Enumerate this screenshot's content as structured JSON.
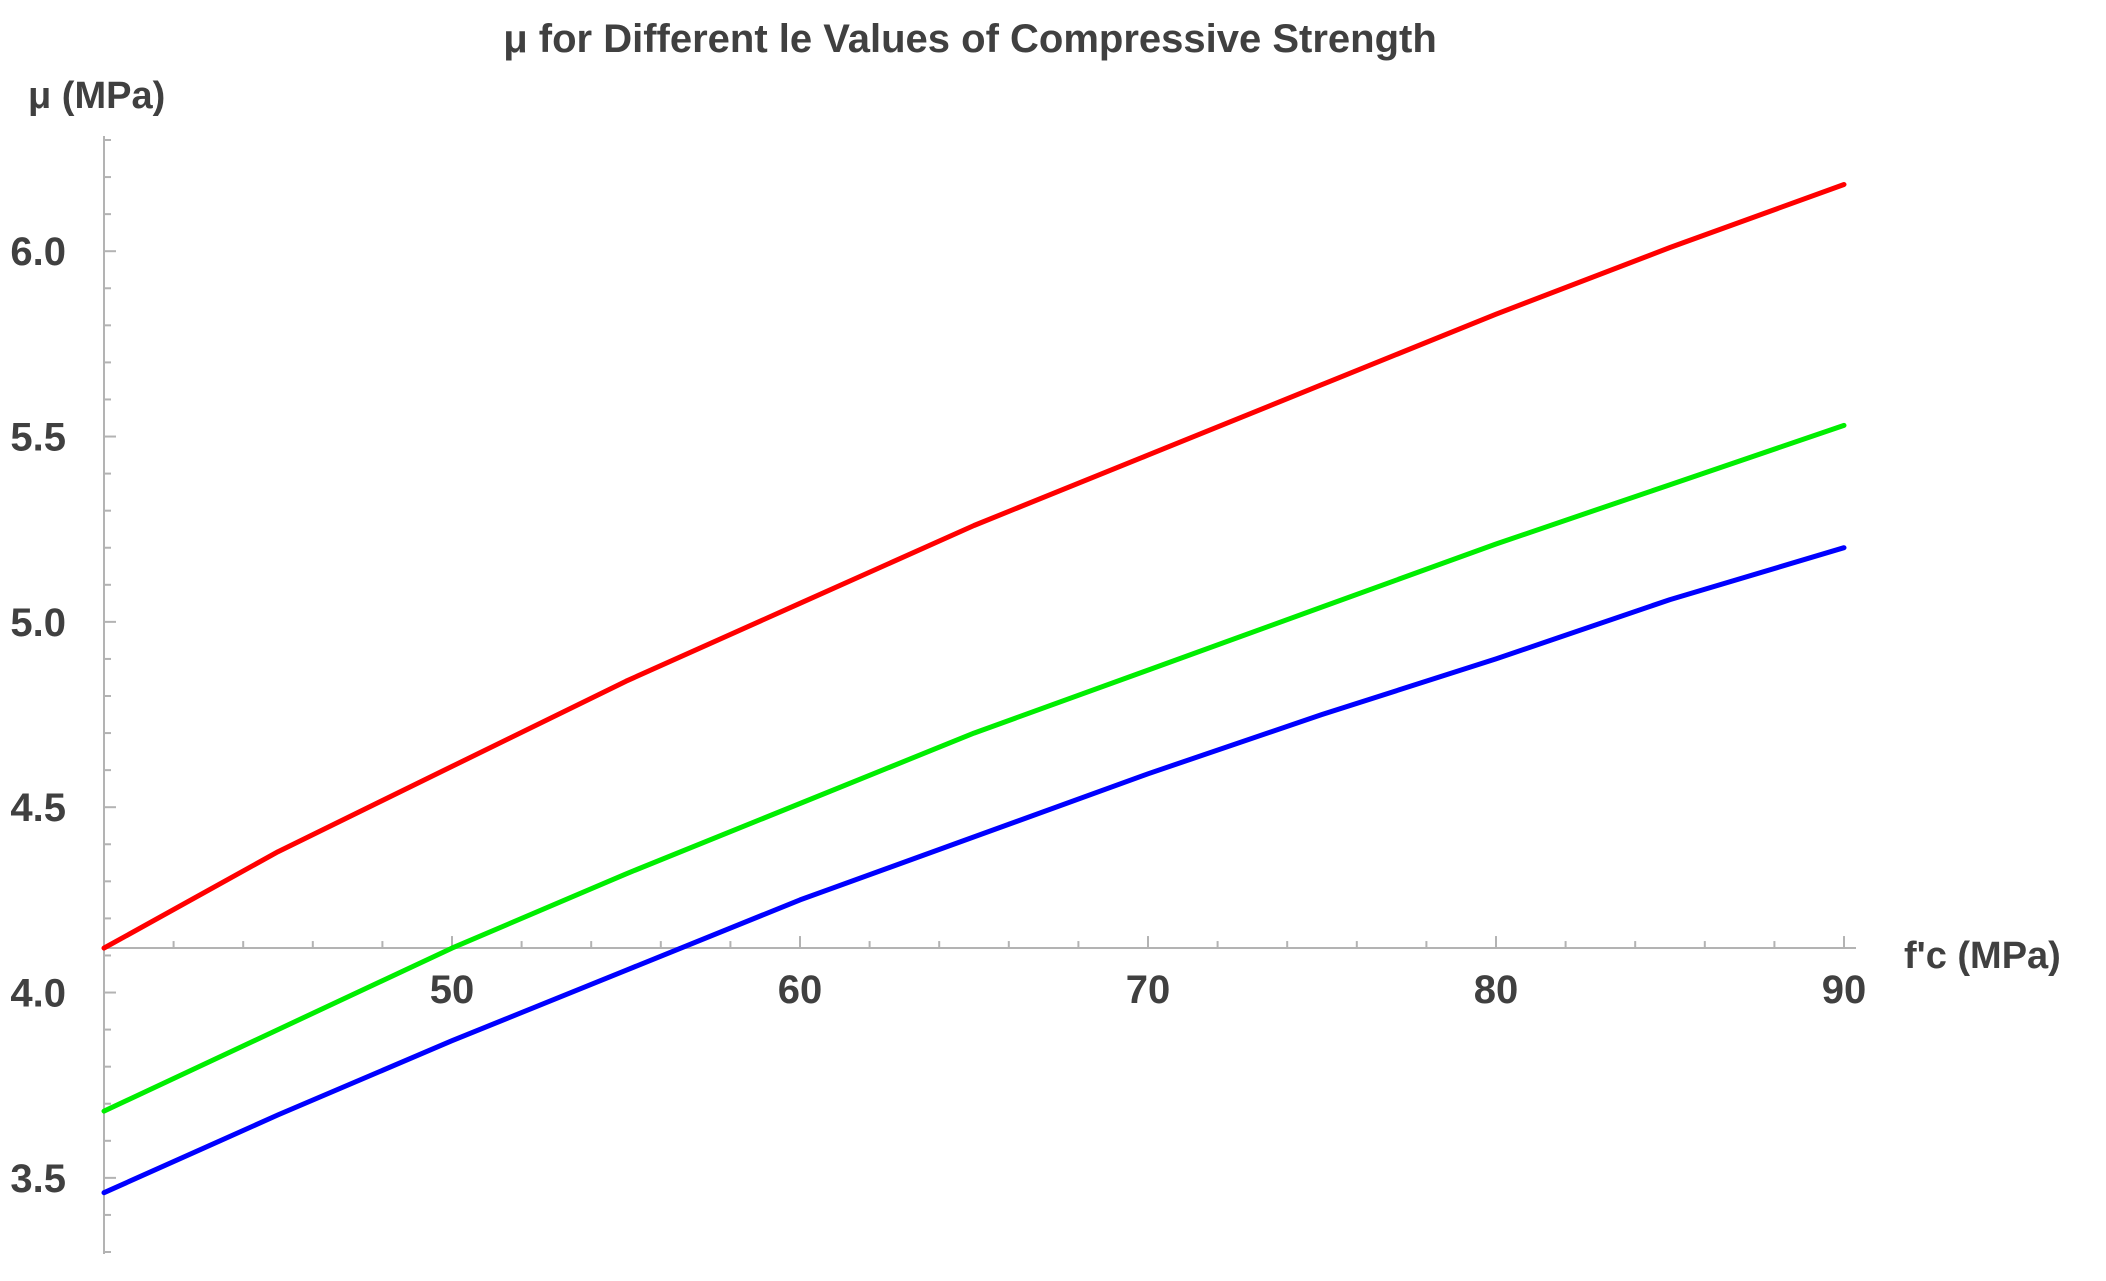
{
  "chart_data": {
    "type": "line",
    "title": "μ for Different le Values of Compressive Strength",
    "xlabel": "f'c (MPa)",
    "ylabel": "μ (MPa)",
    "xlim": [
      40,
      90
    ],
    "ylim": [
      3.3,
      6.3
    ],
    "x_axis_crossing_y": 4.12,
    "x_ticks": [
      50,
      60,
      70,
      80,
      90
    ],
    "x_tick_labels": [
      "50",
      "60",
      "70",
      "80",
      "90"
    ],
    "y_ticks": [
      3.5,
      4.0,
      4.5,
      5.0,
      5.5,
      6.0
    ],
    "y_tick_labels": [
      "3.5",
      "4.0",
      "4.5",
      "5.0",
      "5.5",
      "6.0"
    ],
    "grid": false,
    "legend": "none",
    "x": [
      40,
      45,
      50,
      55,
      60,
      65,
      70,
      75,
      80,
      85,
      90
    ],
    "series": [
      {
        "color": "#ff0000",
        "values": [
          4.12,
          4.38,
          4.61,
          4.84,
          5.05,
          5.26,
          5.45,
          5.64,
          5.83,
          6.01,
          6.18
        ]
      },
      {
        "color": "#00ee00",
        "values": [
          3.68,
          3.9,
          4.12,
          4.32,
          4.51,
          4.7,
          4.87,
          5.04,
          5.21,
          5.37,
          5.53
        ]
      },
      {
        "color": "#0000ff",
        "values": [
          3.46,
          3.67,
          3.87,
          4.06,
          4.25,
          4.42,
          4.59,
          4.75,
          4.9,
          5.06,
          5.2
        ]
      }
    ]
  }
}
